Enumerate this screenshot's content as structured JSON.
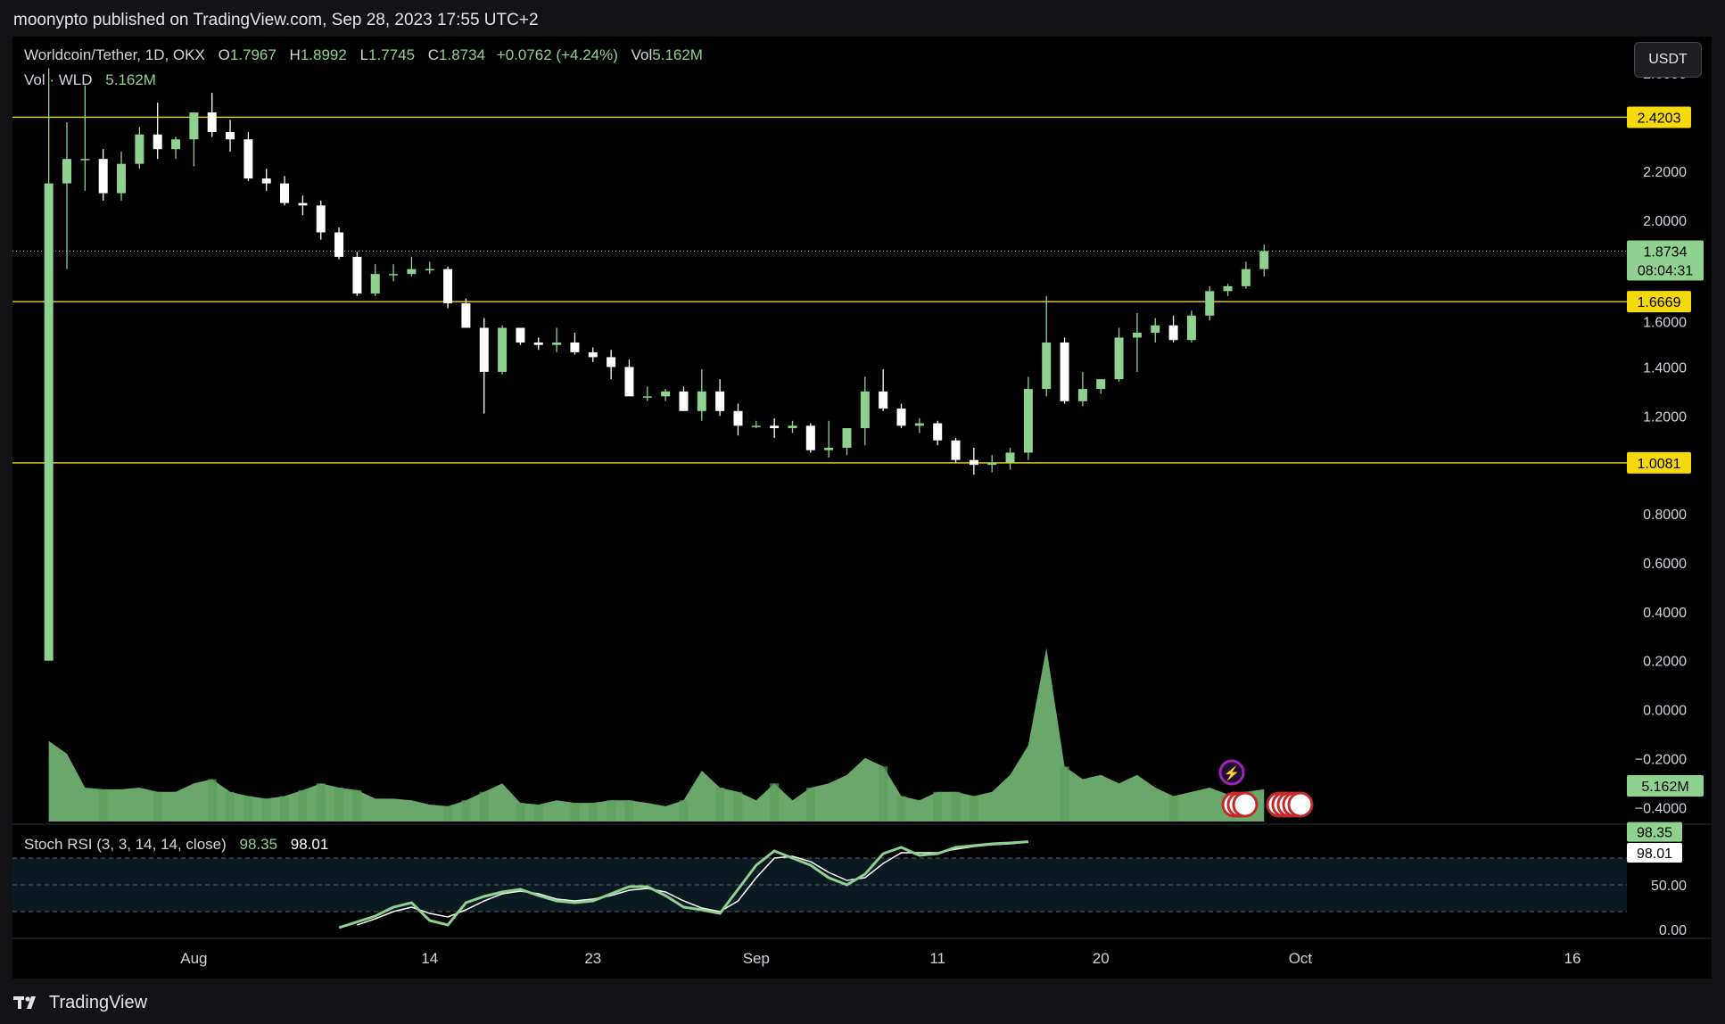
{
  "header": {
    "publisher_line": "moonypto published on TradingView.com, Sep 28, 2023 17:55 UTC+2"
  },
  "legend": {
    "symbol": "Worldcoin/Tether, 1D, OKX",
    "open_label": "O",
    "open": "1.7967",
    "high_label": "H",
    "high": "1.8992",
    "low_label": "L",
    "low": "1.7745",
    "close_label": "C",
    "close": "1.8734",
    "change": "+0.0762 (+4.24%)",
    "vol_label": "Vol",
    "vol": "5.162M"
  },
  "volume_legend": {
    "label": "Vol · WLD",
    "value": "5.162M"
  },
  "rsi_legend": {
    "label": "Stoch RSI (3, 3, 14, 14, close)",
    "k": "98.35",
    "d": "98.01"
  },
  "currency_button": "USDT",
  "footer": {
    "brand": "TradingView"
  },
  "colors": {
    "up": "#8fd18f",
    "down": "#ffffff",
    "hline": "#f5d90a",
    "rsi_k": "#8fd18f",
    "rsi_d": "#ffffff",
    "background": "#000000"
  },
  "chart_data": {
    "type": "candlestick",
    "title": "Worldcoin/Tether, 1D, OKX",
    "price_axis": {
      "ticks": [
        "2.6000",
        "2.2000",
        "2.0000",
        "1.4000",
        "1.2000",
        "0.8000",
        "0.6000",
        "0.4000",
        "0.2000",
        "0.0000",
        "−0.2000",
        "−0.4000"
      ],
      "tick_values": [
        2.6,
        2.2,
        2.0,
        1.4,
        1.2,
        0.8,
        0.6,
        0.4,
        0.2,
        0.0,
        -0.2,
        -0.4
      ],
      "extra_visible_tick": "1.6000",
      "range": [
        -0.45,
        2.75
      ]
    },
    "horizontal_lines": [
      {
        "value": 2.4203,
        "label": "2.4203"
      },
      {
        "value": 1.6669,
        "label": "1.6669"
      },
      {
        "value": 1.0081,
        "label": "1.0081"
      }
    ],
    "last_price": {
      "value": 1.8734,
      "label": "1.8734",
      "countdown": "08:04:31"
    },
    "volume_label": "5.162M",
    "x_axis": {
      "start_date": "2023-07-24",
      "range_days": [
        -2,
        87
      ],
      "ticks": [
        {
          "label": "Aug",
          "day": 8
        },
        {
          "label": "14",
          "day": 21
        },
        {
          "label": "23",
          "day": 30
        },
        {
          "label": "Sep",
          "day": 39
        },
        {
          "label": "11",
          "day": 49
        },
        {
          "label": "20",
          "day": 58
        },
        {
          "label": "Oct",
          "day": 69
        },
        {
          "label": "16",
          "day": 84
        }
      ]
    },
    "candles": [
      [
        0.2,
        2.62,
        0.2,
        2.15,
        95
      ],
      [
        2.15,
        2.4,
        1.8,
        2.25,
        80
      ],
      [
        2.25,
        2.55,
        2.12,
        2.25,
        40
      ],
      [
        2.25,
        2.29,
        2.08,
        2.11,
        38
      ],
      [
        2.11,
        2.28,
        2.08,
        2.23,
        38
      ],
      [
        2.23,
        2.38,
        2.21,
        2.35,
        40
      ],
      [
        2.35,
        2.48,
        2.25,
        2.29,
        35
      ],
      [
        2.29,
        2.34,
        2.25,
        2.33,
        35
      ],
      [
        2.33,
        2.43,
        2.22,
        2.44,
        45
      ],
      [
        2.44,
        2.52,
        2.34,
        2.36,
        50
      ],
      [
        2.36,
        2.41,
        2.28,
        2.33,
        35
      ],
      [
        2.33,
        2.36,
        2.16,
        2.17,
        30
      ],
      [
        2.17,
        2.21,
        2.12,
        2.15,
        27
      ],
      [
        2.15,
        2.18,
        2.06,
        2.07,
        30
      ],
      [
        2.07,
        2.1,
        2.02,
        2.06,
        37
      ],
      [
        2.06,
        2.08,
        1.92,
        1.95,
        45
      ],
      [
        1.95,
        1.97,
        1.84,
        1.85,
        40
      ],
      [
        1.85,
        1.87,
        1.69,
        1.7,
        37
      ],
      [
        1.7,
        1.82,
        1.69,
        1.78,
        27
      ],
      [
        1.78,
        1.82,
        1.75,
        1.78,
        27
      ],
      [
        1.78,
        1.85,
        1.77,
        1.8,
        25
      ],
      [
        1.8,
        1.83,
        1.78,
        1.8,
        20
      ],
      [
        1.8,
        1.81,
        1.64,
        1.66,
        18
      ],
      [
        1.66,
        1.68,
        1.57,
        1.56,
        25
      ],
      [
        1.56,
        1.6,
        1.21,
        1.38,
        35
      ],
      [
        1.38,
        1.57,
        1.37,
        1.56,
        45
      ],
      [
        1.56,
        1.56,
        1.49,
        1.5,
        22
      ],
      [
        1.5,
        1.52,
        1.47,
        1.49,
        20
      ],
      [
        1.49,
        1.56,
        1.46,
        1.5,
        25
      ],
      [
        1.5,
        1.54,
        1.45,
        1.46,
        22
      ],
      [
        1.46,
        1.48,
        1.42,
        1.44,
        22
      ],
      [
        1.44,
        1.47,
        1.35,
        1.4,
        25
      ],
      [
        1.4,
        1.43,
        1.29,
        1.28,
        25
      ],
      [
        1.28,
        1.32,
        1.26,
        1.28,
        22
      ],
      [
        1.28,
        1.31,
        1.26,
        1.3,
        18
      ],
      [
        1.3,
        1.32,
        1.22,
        1.22,
        25
      ],
      [
        1.22,
        1.39,
        1.18,
        1.3,
        60
      ],
      [
        1.3,
        1.35,
        1.2,
        1.22,
        40
      ],
      [
        1.22,
        1.25,
        1.12,
        1.16,
        35
      ],
      [
        1.16,
        1.18,
        1.15,
        1.16,
        25
      ],
      [
        1.16,
        1.19,
        1.11,
        1.15,
        45
      ],
      [
        1.15,
        1.18,
        1.13,
        1.16,
        25
      ],
      [
        1.16,
        1.17,
        1.05,
        1.06,
        40
      ],
      [
        1.06,
        1.18,
        1.03,
        1.07,
        45
      ],
      [
        1.07,
        1.15,
        1.04,
        1.15,
        55
      ],
      [
        1.15,
        1.36,
        1.08,
        1.3,
        75
      ],
      [
        1.3,
        1.39,
        1.22,
        1.23,
        65
      ],
      [
        1.23,
        1.25,
        1.15,
        1.16,
        30
      ],
      [
        1.16,
        1.19,
        1.13,
        1.17,
        25
      ],
      [
        1.17,
        1.18,
        1.08,
        1.1,
        35
      ],
      [
        1.1,
        1.11,
        1.01,
        1.02,
        35
      ],
      [
        1.02,
        1.07,
        0.96,
        1.0,
        30
      ],
      [
        1.0,
        1.04,
        0.97,
        1.01,
        35
      ],
      [
        1.01,
        1.07,
        0.98,
        1.05,
        55
      ],
      [
        1.05,
        1.36,
        1.02,
        1.31,
        90
      ],
      [
        1.31,
        1.69,
        1.28,
        1.5,
        205
      ],
      [
        1.5,
        1.52,
        1.25,
        1.26,
        65
      ],
      [
        1.26,
        1.38,
        1.24,
        1.31,
        50
      ],
      [
        1.31,
        1.35,
        1.29,
        1.35,
        55
      ],
      [
        1.35,
        1.56,
        1.34,
        1.52,
        45
      ],
      [
        1.52,
        1.62,
        1.38,
        1.54,
        55
      ],
      [
        1.54,
        1.6,
        1.5,
        1.57,
        40
      ],
      [
        1.57,
        1.61,
        1.5,
        1.51,
        30
      ],
      [
        1.51,
        1.63,
        1.5,
        1.61,
        35
      ],
      [
        1.61,
        1.73,
        1.59,
        1.71,
        40
      ],
      [
        1.71,
        1.74,
        1.69,
        1.73,
        32
      ],
      [
        1.73,
        1.83,
        1.72,
        1.8,
        35
      ],
      [
        1.8,
        1.9,
        1.77,
        1.8734,
        38
      ]
    ],
    "stoch_rsi": {
      "axis_ticks": [
        "50.00",
        "0.00"
      ],
      "bands": [
        80,
        50,
        20
      ],
      "k": [
        [
          16,
          2
        ],
        [
          18,
          15
        ],
        [
          19,
          25
        ],
        [
          20,
          30
        ],
        [
          21,
          10
        ],
        [
          22,
          5
        ],
        [
          23,
          30
        ],
        [
          24,
          37
        ],
        [
          25,
          42
        ],
        [
          26,
          45
        ],
        [
          27,
          38
        ],
        [
          28,
          32
        ],
        [
          29,
          30
        ],
        [
          30,
          32
        ],
        [
          31,
          40
        ],
        [
          32,
          48
        ],
        [
          33,
          48
        ],
        [
          34,
          38
        ],
        [
          35,
          25
        ],
        [
          36,
          22
        ],
        [
          37,
          18
        ],
        [
          38,
          45
        ],
        [
          39,
          72
        ],
        [
          40,
          88
        ],
        [
          41,
          80
        ],
        [
          42,
          72
        ],
        [
          43,
          58
        ],
        [
          44,
          50
        ],
        [
          45,
          62
        ],
        [
          46,
          85
        ],
        [
          47,
          92
        ],
        [
          48,
          83
        ],
        [
          49,
          85
        ],
        [
          50,
          92
        ],
        [
          51,
          94
        ],
        [
          52,
          96
        ],
        [
          53,
          97
        ],
        [
          54,
          98.35
        ]
      ],
      "d": [
        [
          17,
          5
        ],
        [
          18,
          12
        ],
        [
          19,
          20
        ],
        [
          20,
          25
        ],
        [
          21,
          18
        ],
        [
          22,
          14
        ],
        [
          23,
          22
        ],
        [
          24,
          32
        ],
        [
          25,
          40
        ],
        [
          26,
          43
        ],
        [
          27,
          40
        ],
        [
          28,
          34
        ],
        [
          29,
          32
        ],
        [
          30,
          34
        ],
        [
          31,
          38
        ],
        [
          32,
          44
        ],
        [
          33,
          46
        ],
        [
          34,
          42
        ],
        [
          35,
          32
        ],
        [
          36,
          24
        ],
        [
          37,
          20
        ],
        [
          38,
          32
        ],
        [
          39,
          58
        ],
        [
          40,
          80
        ],
        [
          41,
          82
        ],
        [
          42,
          76
        ],
        [
          43,
          64
        ],
        [
          44,
          55
        ],
        [
          45,
          58
        ],
        [
          46,
          74
        ],
        [
          47,
          86
        ],
        [
          48,
          86
        ],
        [
          49,
          86
        ],
        [
          50,
          90
        ],
        [
          51,
          93
        ],
        [
          52,
          95
        ],
        [
          53,
          96
        ],
        [
          54,
          98.01
        ]
      ]
    }
  }
}
